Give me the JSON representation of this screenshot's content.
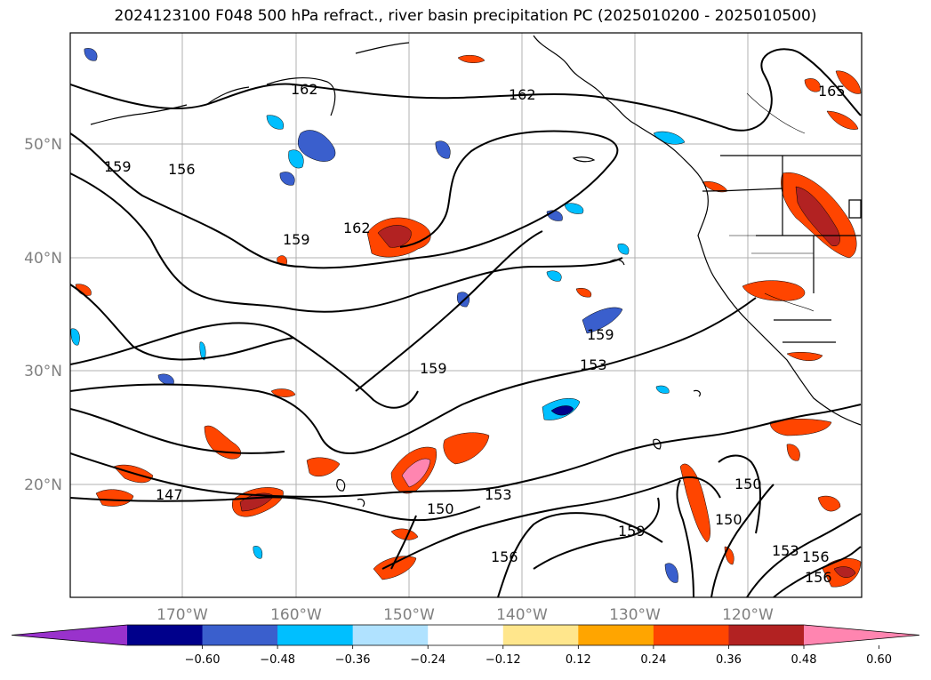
{
  "title": "2024123100 F048 500 hPa refract., river basin precipitation PC (2025010200 - 2025010500)",
  "map": {
    "lon_ticks": [
      "170°W",
      "160°W",
      "150°W",
      "140°W",
      "130°W",
      "120°W"
    ],
    "lat_ticks": [
      "50°N",
      "40°N",
      "30°N",
      "20°N"
    ],
    "contour_labels": [
      "162",
      "162",
      "165",
      "159",
      "156",
      "162",
      "159",
      "159",
      "153",
      "147",
      "150",
      "153",
      "156",
      "159",
      "150",
      "150",
      "153",
      "156",
      "156"
    ]
  },
  "colorbar": {
    "ticks": [
      "−0.60",
      "−0.48",
      "−0.36",
      "−0.24",
      "−0.12",
      "0.12",
      "0.24",
      "0.36",
      "0.48",
      "0.60"
    ],
    "colors": [
      "#9932cc",
      "#00008b",
      "#3a5fcd",
      "#00bfff",
      "#b0e2ff",
      "#ffffff",
      "#ffe68c",
      "#ffa500",
      "#ff4500",
      "#b22222",
      "#ff85b0"
    ]
  }
}
